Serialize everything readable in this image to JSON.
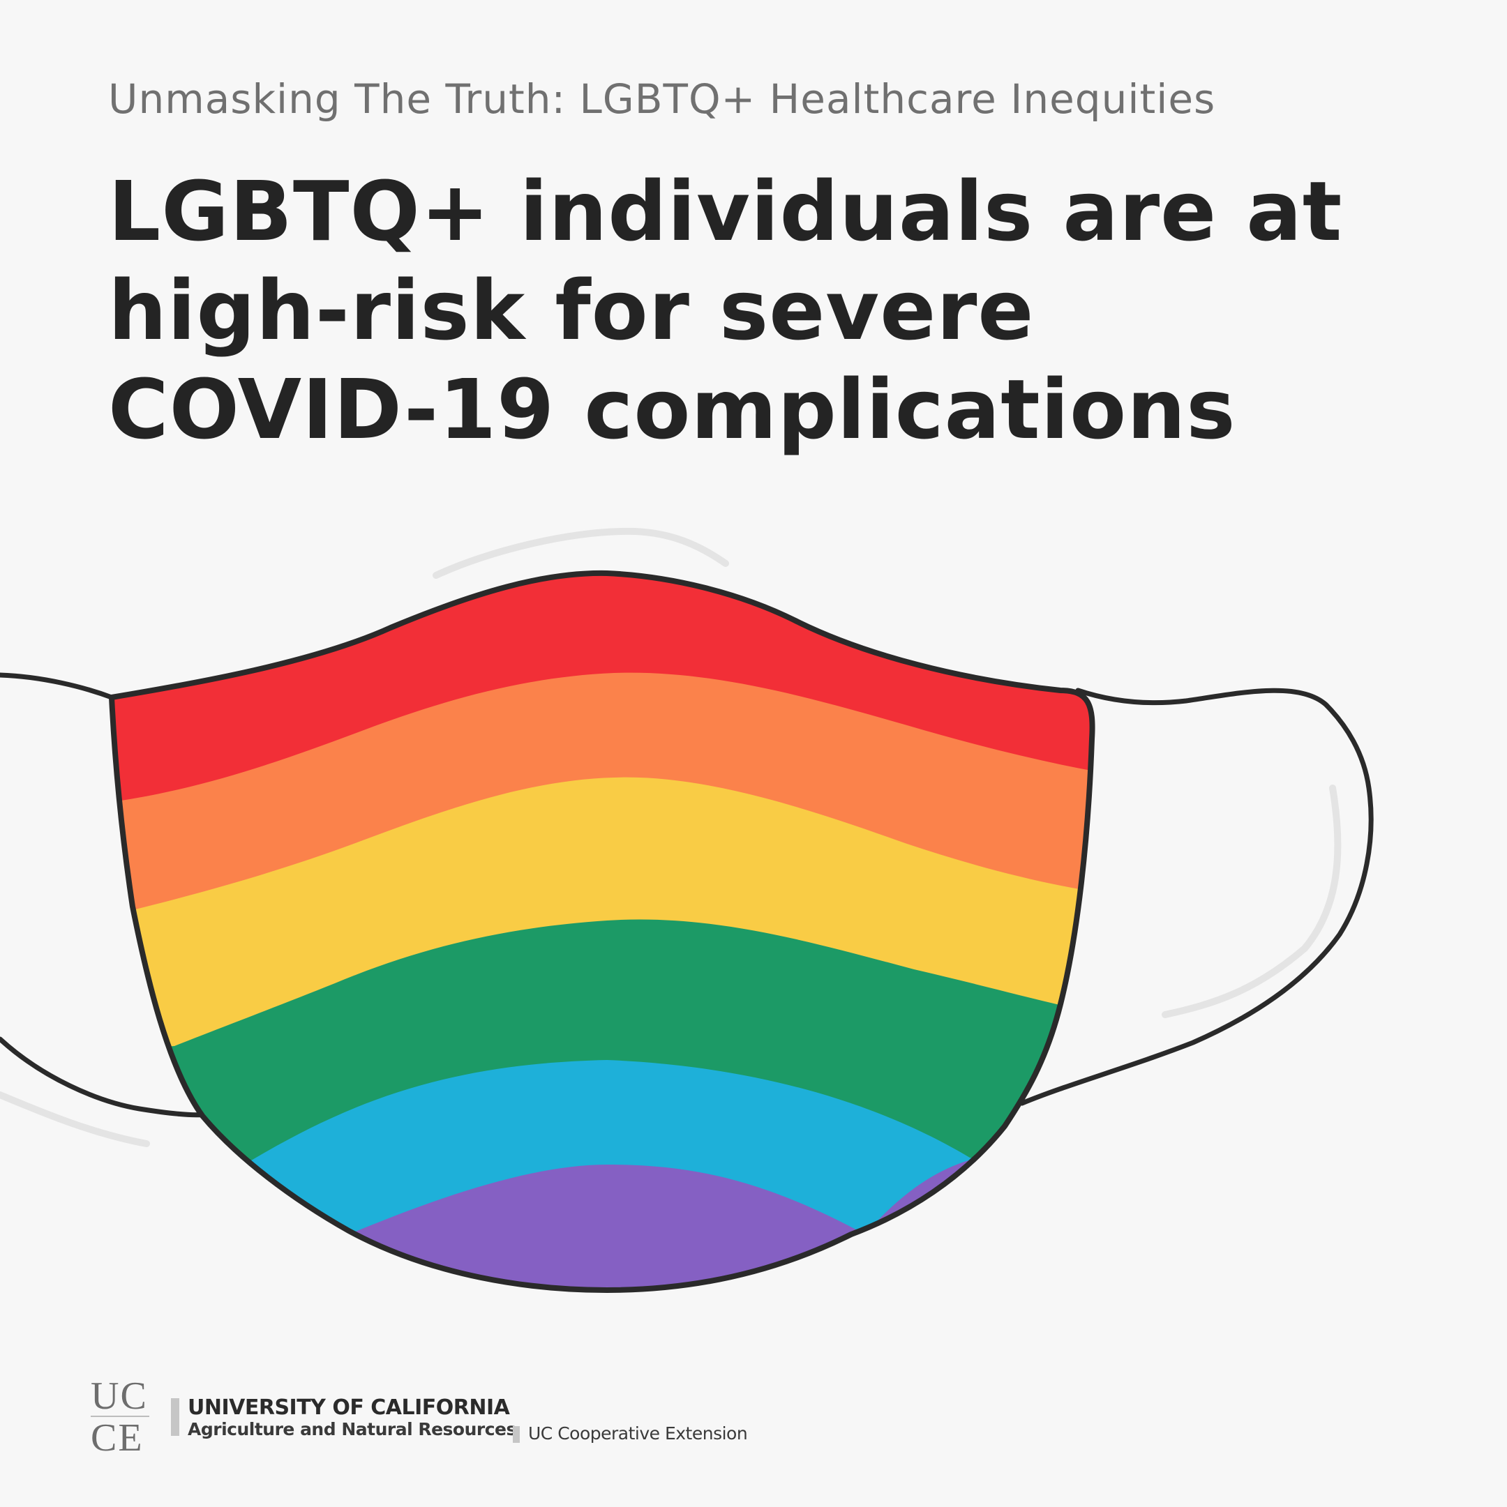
{
  "header": {
    "subtitle": "Unmasking The Truth: LGBTQ+ Healthcare Inequities",
    "headline_lines": [
      "LGBTQ+ individuals are at",
      "high-risk for severe",
      "COVID-19 complications"
    ]
  },
  "illustration": {
    "description_icon": "rainbow-face-mask-icon",
    "stripe_colors": [
      "#f22f37",
      "#fb824b",
      "#f9cc45",
      "#1c9a66",
      "#1eb0d9",
      "#8560c3"
    ],
    "outline_color": "#2a2a2a"
  },
  "footer": {
    "logo_top": "UC",
    "logo_bottom": "CE",
    "org_name": "UNIVERSITY OF CALIFORNIA",
    "division": "Agriculture and Natural Resources",
    "program": "UC Cooperative Extension"
  }
}
